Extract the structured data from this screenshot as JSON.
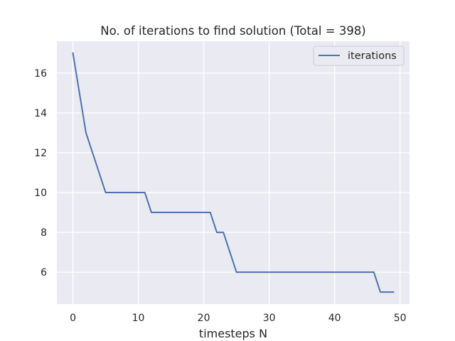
{
  "chart_data": {
    "type": "line",
    "title": "No. of iterations to find solution (Total = 398)",
    "xlabel": "timesteps N",
    "ylabel": "",
    "xlim": [
      -2.45,
      51.45
    ],
    "ylim": [
      4.4,
      17.6
    ],
    "xticks": [
      0,
      10,
      20,
      30,
      40,
      50
    ],
    "yticks": [
      6,
      8,
      10,
      12,
      14,
      16
    ],
    "grid": true,
    "legend_position": "top-right",
    "series": [
      {
        "name": "iterations",
        "color": "#4c72b0",
        "x": [
          0,
          1,
          2,
          3,
          4,
          5,
          6,
          7,
          8,
          9,
          10,
          11,
          12,
          13,
          14,
          15,
          16,
          17,
          18,
          19,
          20,
          21,
          22,
          23,
          24,
          25,
          26,
          27,
          28,
          29,
          30,
          31,
          32,
          33,
          34,
          35,
          36,
          37,
          38,
          39,
          40,
          41,
          42,
          43,
          44,
          45,
          46,
          47,
          48,
          49
        ],
        "values": [
          17,
          15,
          13,
          12,
          11,
          10,
          10,
          10,
          10,
          10,
          10,
          10,
          9,
          9,
          9,
          9,
          9,
          9,
          9,
          9,
          9,
          9,
          8,
          8,
          7,
          6,
          6,
          6,
          6,
          6,
          6,
          6,
          6,
          6,
          6,
          6,
          6,
          6,
          6,
          6,
          6,
          6,
          6,
          6,
          6,
          6,
          6,
          5,
          5,
          5
        ]
      }
    ]
  }
}
